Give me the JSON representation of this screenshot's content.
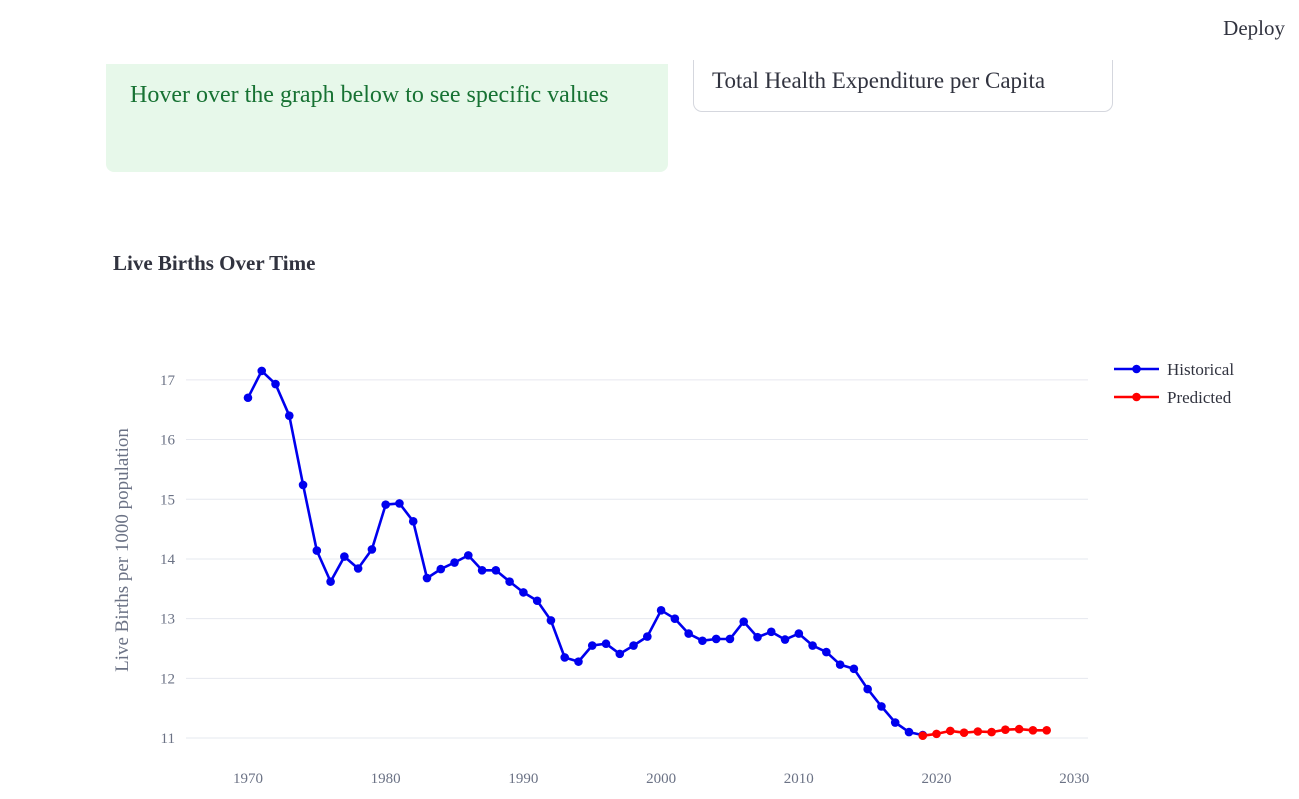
{
  "header": {
    "deploy_label": "Deploy"
  },
  "info": {
    "text": "Hover over the graph below to see specific values"
  },
  "metric_select": {
    "value": "Total Health Expenditure per Capita"
  },
  "chart_data": {
    "type": "line",
    "title": "Live Births Over Time",
    "xlabel": "",
    "ylabel": "Live Births per 1000 population",
    "xlim": [
      1965.5,
      2031
    ],
    "ylim": [
      10.8,
      17.5
    ],
    "xticks": [
      1970,
      1980,
      1990,
      2000,
      2010,
      2020,
      2030
    ],
    "yticks": [
      11,
      12,
      13,
      14,
      15,
      16,
      17
    ],
    "grid": true,
    "legend_position": "top-right",
    "series": [
      {
        "name": "Historical",
        "color": "#0000ee",
        "x": [
          1970,
          1971,
          1972,
          1973,
          1974,
          1975,
          1976,
          1977,
          1978,
          1979,
          1980,
          1981,
          1982,
          1983,
          1984,
          1985,
          1986,
          1987,
          1988,
          1989,
          1990,
          1991,
          1992,
          1993,
          1994,
          1995,
          1996,
          1997,
          1998,
          1999,
          2000,
          2001,
          2002,
          2003,
          2004,
          2005,
          2006,
          2007,
          2008,
          2009,
          2010,
          2011,
          2012,
          2013,
          2014,
          2015,
          2016,
          2017,
          2018,
          2019
        ],
        "values": [
          16.7,
          17.15,
          16.93,
          16.4,
          15.24,
          14.14,
          13.62,
          14.04,
          13.84,
          14.16,
          14.91,
          14.93,
          14.63,
          13.68,
          13.83,
          13.94,
          14.06,
          13.81,
          13.81,
          13.62,
          13.44,
          13.3,
          12.97,
          12.35,
          12.28,
          12.55,
          12.58,
          12.41,
          12.55,
          12.7,
          13.14,
          13.0,
          12.75,
          12.63,
          12.66,
          12.66,
          12.95,
          12.69,
          12.78,
          12.65,
          12.75,
          12.55,
          12.44,
          12.23,
          12.16,
          11.82,
          11.53,
          11.26,
          11.1,
          11.05
        ]
      },
      {
        "name": "Predicted",
        "color": "#ff0000",
        "x": [
          2019,
          2020,
          2021,
          2022,
          2023,
          2024,
          2025,
          2026,
          2027,
          2028
        ],
        "values": [
          11.04,
          11.07,
          11.12,
          11.09,
          11.11,
          11.1,
          11.14,
          11.15,
          11.13,
          11.13
        ]
      }
    ]
  }
}
